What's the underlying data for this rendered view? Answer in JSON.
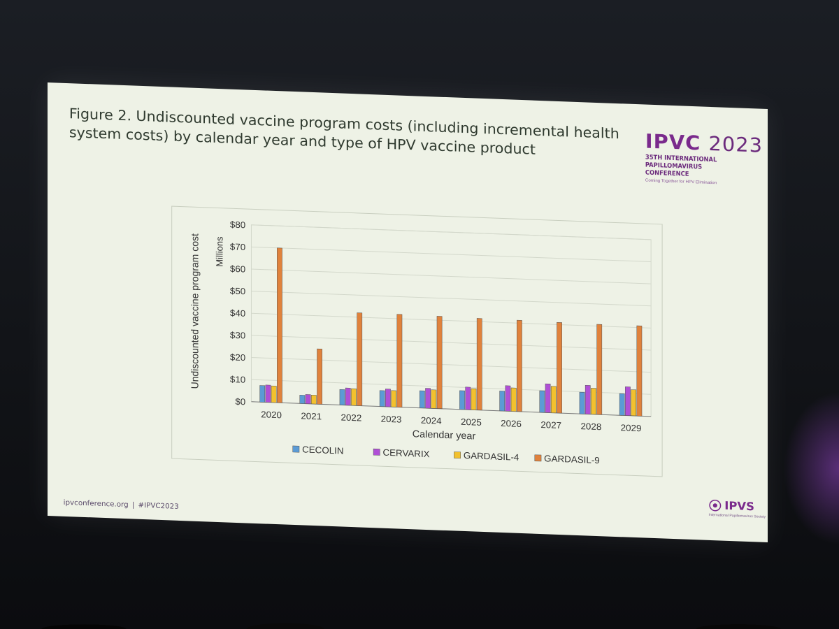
{
  "slide": {
    "title": "Figure 2. Undiscounted vaccine program costs (including incremental health system costs) by calendar year and type of HPV vaccine product",
    "logo_main": "IPVC",
    "logo_year": "2023",
    "logo_subtitle": "35TH INTERNATIONAL PAPILLOMAVIRUS CONFERENCE",
    "logo_tagline": "Coming Together for HPV Elimination",
    "footer_site": "ipvconference.org",
    "footer_sep": "|",
    "footer_hashtag": "#IPVC2023",
    "ipvs_name": "IPVS",
    "ipvs_tagline": "International Papillomavirus Society"
  },
  "colors": {
    "CECOLIN": "#5b9bd5",
    "CERVARIX": "#b04fd6",
    "GARDASIL-4": "#f2c12e",
    "GARDASIL-9": "#e0823c",
    "accent": "#7a2a8c"
  },
  "chart_data": {
    "type": "bar",
    "title": "",
    "xlabel": "Calendar year",
    "ylabel": "Undiscounted vaccine program cost",
    "yunit": "Millions",
    "ylim": [
      0,
      80
    ],
    "yticks": [
      "$0",
      "$10",
      "$20",
      "$30",
      "$40",
      "$50",
      "$60",
      "$70",
      "$80"
    ],
    "grid": true,
    "legend": "bottom",
    "categories": [
      "2020",
      "2021",
      "2022",
      "2023",
      "2024",
      "2025",
      "2026",
      "2027",
      "2028",
      "2029"
    ],
    "series": [
      {
        "name": "CECOLIN",
        "values": [
          7.5,
          3.8,
          7.0,
          7.2,
          7.8,
          8.5,
          9.0,
          9.8,
          9.8,
          9.8
        ]
      },
      {
        "name": "CERVARIX",
        "values": [
          7.8,
          4.2,
          7.8,
          8.0,
          9.0,
          10.2,
          11.5,
          13.0,
          13.0,
          13.0
        ]
      },
      {
        "name": "GARDASIL-4",
        "values": [
          7.5,
          4.0,
          7.6,
          7.4,
          8.4,
          9.6,
          10.6,
          12.0,
          11.8,
          11.8
        ]
      },
      {
        "name": "GARDASIL-9",
        "values": [
          70.0,
          25.0,
          42.0,
          42.0,
          41.8,
          41.5,
          41.3,
          41.0,
          40.8,
          40.8
        ]
      }
    ]
  }
}
